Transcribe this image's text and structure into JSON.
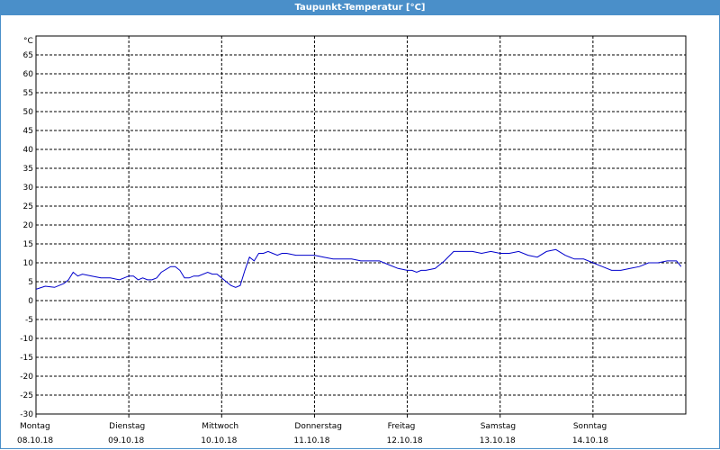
{
  "window": {
    "title": "Taupunkt-Temperatur [°C]"
  },
  "colors": {
    "title_bar": "#4a8fc9",
    "line": "#0000cc",
    "grid": "#000000",
    "background": "#ffffff"
  },
  "chart_data": {
    "type": "line",
    "title": "Taupunkt-Temperatur [°C]",
    "ylabel": "°C",
    "ylim": [
      -30,
      70
    ],
    "yticks": [
      65,
      60,
      55,
      50,
      45,
      40,
      35,
      30,
      25,
      20,
      15,
      10,
      5,
      0,
      -5,
      -10,
      -15,
      -20,
      -25,
      -30
    ],
    "xlim": [
      0,
      7
    ],
    "x_unit": "days",
    "grid": true,
    "grid_style": "dashed",
    "day_labels": [
      {
        "weekday": "Montag",
        "date": "08.10.18"
      },
      {
        "weekday": "Dienstag",
        "date": "09.10.18"
      },
      {
        "weekday": "Mittwoch",
        "date": "10.10.18"
      },
      {
        "weekday": "Donnerstag",
        "date": "11.10.18"
      },
      {
        "weekday": "Freitag",
        "date": "12.10.18"
      },
      {
        "weekday": "Samstag",
        "date": "13.10.18"
      },
      {
        "weekday": "Sonntag",
        "date": "14.10.18"
      }
    ],
    "series": [
      {
        "x": [
          0,
          0.1,
          0.2,
          0.3,
          0.35,
          0.4,
          0.45,
          0.5,
          0.6,
          0.7,
          0.8,
          0.9,
          1.0,
          1.05,
          1.1,
          1.15,
          1.2,
          1.25,
          1.3,
          1.35,
          1.45,
          1.5,
          1.55,
          1.6,
          1.65,
          1.7,
          1.75,
          1.85,
          1.9,
          1.95,
          2.0,
          2.05,
          2.1,
          2.15,
          2.2,
          2.25,
          2.3,
          2.35,
          2.4,
          2.45,
          2.5,
          2.55,
          2.6,
          2.65,
          2.7,
          2.8,
          2.9,
          3.0,
          3.1,
          3.2,
          3.3,
          3.4,
          3.5,
          3.6,
          3.7,
          3.8,
          3.9,
          4.0,
          4.05,
          4.1,
          4.15,
          4.2,
          4.3,
          4.4,
          4.5,
          4.6,
          4.7,
          4.8,
          4.9,
          5.0,
          5.1,
          5.2,
          5.3,
          5.4,
          5.5,
          5.6,
          5.7,
          5.8,
          5.9,
          6.0,
          6.1,
          6.2,
          6.3,
          6.4,
          6.5,
          6.6,
          6.7,
          6.8,
          6.9,
          6.95
        ],
        "y": [
          3,
          3.8,
          3.5,
          4.5,
          5.5,
          7.5,
          6.5,
          7,
          6.5,
          6,
          6,
          5.5,
          6.5,
          6.5,
          5.5,
          6,
          5.5,
          5.5,
          6,
          7.5,
          9,
          9,
          8,
          6,
          6,
          6.5,
          6.5,
          7.5,
          7,
          7,
          6,
          5,
          4,
          3.5,
          4,
          8,
          11.5,
          10.5,
          12.5,
          12.5,
          13,
          12.5,
          12,
          12.5,
          12.5,
          12,
          12,
          12,
          11.5,
          11,
          11,
          11,
          10.5,
          10.5,
          10.5,
          9.5,
          8.5,
          8,
          8,
          7.5,
          8,
          8,
          8.5,
          10.5,
          13,
          13,
          13,
          12.5,
          13,
          12.5,
          12.5,
          13,
          12,
          11.5,
          13,
          13.5,
          12,
          11,
          11,
          10,
          9,
          8,
          8,
          8.5,
          9,
          10,
          10,
          10.5,
          10.5,
          9
        ]
      }
    ]
  }
}
